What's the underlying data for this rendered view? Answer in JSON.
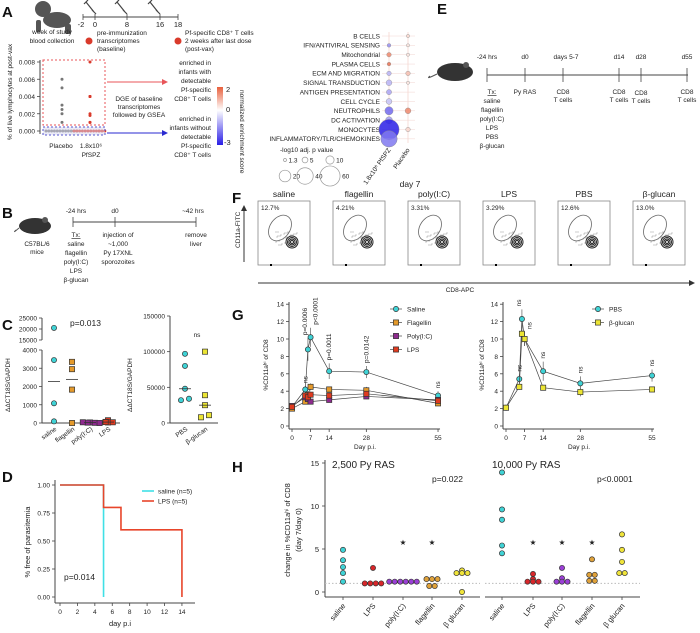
{
  "panels": {
    "A": "A",
    "B": "B",
    "C": "C",
    "D": "D",
    "E": "E",
    "F": "F",
    "G": "G",
    "H": "H"
  },
  "panelA": {
    "timeline_ticks": [
      "-2",
      "0",
      "8",
      "16",
      "18"
    ],
    "week_label": [
      "week of study",
      "blood collection"
    ],
    "legend_pre": [
      "pre-immunization",
      "transcriptomes",
      "(baseline)"
    ],
    "legend_post": [
      "Pf-specific CD8⁺ T cells",
      "2 weeks after last dose",
      "(post-vax)"
    ],
    "dge_text": [
      "DGE of baseline",
      "transcriptomes",
      "followed by GSEA"
    ],
    "enriched_with": [
      "enriched in",
      "infants with",
      "detectable",
      "Pf-specific",
      "CD8⁺ T cells"
    ],
    "enriched_without": [
      "enriched in",
      "infants without",
      "detectable",
      "Pf-specific",
      "CD8⁺ T cells"
    ],
    "colorbar": {
      "title": "normalized enrichment score",
      "ticks": [
        "2",
        "0",
        "-3"
      ],
      "low_color": "#2a1ee6",
      "mid_color": "#ffffff",
      "high_color": "#e8603c"
    },
    "pvalue_legend_title": "-log10 adj. p value"
  },
  "panelB": {
    "mouse_label": [
      "C57BL/6",
      "mice"
    ],
    "timeline_ticks": [
      "-24 hrs",
      "d0",
      "~42 hrs"
    ],
    "tx": [
      "Tx:",
      "saline",
      "flagellin",
      "poly(I:C)",
      "LPS",
      "β-glucan"
    ],
    "injection": [
      "injection of",
      "~1,000",
      "Py 17XNL",
      "sporozoites"
    ],
    "end": [
      "remove",
      "liver"
    ]
  },
  "panelE": {
    "timeline_ticks": [
      "-24 hrs",
      "d0",
      "days 5-7",
      "d14",
      "d28",
      "d55"
    ],
    "tx": [
      "Tx:",
      "saline",
      "flagellin",
      "poly(I:C)",
      "LPS",
      "PBS",
      "β-glucan"
    ],
    "events": [
      [
        "Py RAS"
      ],
      [
        "CD8",
        "T cells"
      ],
      [
        "CD8",
        "T cells"
      ],
      [
        "CD8",
        "T cells"
      ],
      [
        "CD8",
        "T cells"
      ]
    ]
  },
  "panelF": {
    "title": "day 7",
    "ylabel": "CD11a-FITC",
    "xlabel": "CD8-APC",
    "plots": [
      {
        "label": "saline",
        "pct": "12.7%"
      },
      {
        "label": "flagellin",
        "pct": "4.21%"
      },
      {
        "label": "poly(I:C)",
        "pct": "3.31%"
      },
      {
        "label": "LPS",
        "pct": "3.29%"
      },
      {
        "label": "PBS",
        "pct": "12.6%"
      },
      {
        "label": "β-glucan",
        "pct": "13.0%"
      }
    ]
  },
  "chart_data": [
    {
      "id": "A-scatter",
      "type": "scatter",
      "categories": [
        "Placebo",
        "1.8x10⁶ PfSPZ"
      ],
      "ylabel": "% of live lymphocytes at post-vax",
      "ylim": [
        0,
        0.008
      ],
      "yticks": [
        "0.008",
        "0.006",
        "0.004",
        "0.002",
        "0.000"
      ],
      "series": [
        {
          "category": "Placebo",
          "values": [
            0.006,
            0.005,
            0.003,
            0.0025,
            0.002,
            0.001,
            0,
            0,
            0,
            0,
            0,
            0,
            0,
            0,
            0,
            0,
            0,
            0
          ],
          "color": "#777777"
        },
        {
          "category": "1.8x10⁶ PfSPZ",
          "values": [
            0.008,
            0.004,
            0.004,
            0.004,
            0.004,
            0.002,
            0.0018,
            0.001,
            0.001,
            0,
            0,
            0,
            0,
            0,
            0,
            0,
            0,
            0,
            0,
            0,
            0,
            0
          ],
          "color": "#d93a2b"
        }
      ]
    },
    {
      "id": "A-dotplot",
      "type": "dotplot",
      "columns": [
        "1.8x10⁶ PfSPZ",
        "Placebo"
      ],
      "rows": [
        "B CELLS",
        "IFN/ANTIVIRAL SENSING",
        "Mitochondrial",
        "PLASMA CELLS",
        "ECM AND MIGRATION",
        "SIGNAL TRANSDUCTION",
        "ANTIGEN PRESENTATION",
        "CELL CYCLE",
        "NEUTROPHILS",
        "DC ACTIVATION",
        "MONOCYTES",
        "INFLAMMATORY/TLR/CHEMOKINES"
      ],
      "nes": [
        [
          null,
          0.5
        ],
        [
          -1.5,
          0.3
        ],
        [
          1.5,
          0.3
        ],
        [
          1.8,
          null
        ],
        [
          -1.0,
          0.8
        ],
        [
          -1.0,
          0.3
        ],
        [
          -1.2,
          null
        ],
        [
          -0.8,
          null
        ],
        [
          -2.0,
          1.5
        ],
        [
          -1.3,
          null
        ],
        [
          -3.0,
          0.5
        ],
        [
          -1.8,
          null
        ]
      ],
      "neg_log10_adj_p": [
        [
          null,
          1.5
        ],
        [
          2,
          1.5
        ],
        [
          3,
          1.5
        ],
        [
          2,
          null
        ],
        [
          3,
          3
        ],
        [
          5,
          1.5
        ],
        [
          4,
          null
        ],
        [
          5,
          null
        ],
        [
          10,
          5
        ],
        [
          7,
          null
        ],
        [
          60,
          3
        ],
        [
          40,
          null
        ]
      ],
      "size_legend": [
        "1.3",
        "5",
        "10",
        "20",
        "40",
        "60"
      ]
    },
    {
      "id": "C-left",
      "type": "scatter",
      "categories": [
        "saline",
        "flagellin",
        "poly(I:C)",
        "LPS"
      ],
      "ylabel": "ΔΔCT18S/GAPDH",
      "annotation": "p=0.013",
      "yticks_lower": [
        "0",
        "1000",
        "2000",
        "3000",
        "4000"
      ],
      "yticks_upper": [
        "15000",
        "20000",
        "25000"
      ],
      "values": [
        [
          20500,
          3450,
          1080,
          90
        ],
        [
          3350,
          2950,
          1830,
          0
        ],
        [
          30,
          20,
          10,
          40,
          0
        ],
        [
          150,
          60,
          30,
          50,
          40
        ]
      ],
      "medians": [
        2270,
        2390,
        20,
        50
      ],
      "colors": [
        "#3fd3d6",
        "#e59a2b",
        "#8e2a8e",
        "#e03a1f"
      ],
      "markers": [
        "circle",
        "square",
        "square",
        "square"
      ]
    },
    {
      "id": "C-right",
      "type": "scatter",
      "categories": [
        "PBS",
        "β-glucan"
      ],
      "ylabel": "ΔΔCT18S/GAPDH",
      "annotation": "ns",
      "ylim": [
        0,
        150000
      ],
      "yticks": [
        "0",
        "50000",
        "100000",
        "150000"
      ],
      "values": [
        [
          97000,
          80000,
          48000,
          32000,
          34000
        ],
        [
          100000,
          39000,
          25000,
          8000,
          11000
        ]
      ],
      "medians": [
        48000,
        25000
      ],
      "colors": [
        "#3fd3d6",
        "#ece534"
      ],
      "markers": [
        "circle",
        "square"
      ]
    },
    {
      "id": "D",
      "type": "line",
      "xlabel": "day p.i",
      "ylabel": "% free of parasitemia",
      "annotation": "p=0.014",
      "xlim": [
        0,
        14
      ],
      "xticks": [
        "0",
        "2",
        "4",
        "6",
        "8",
        "10",
        "12",
        "14"
      ],
      "ylim": [
        0,
        1
      ],
      "yticks": [
        "0.00",
        "0.25",
        "0.50",
        "0.75",
        "1.00"
      ],
      "legend": "top-right",
      "series": [
        {
          "name": "saline (n=5)",
          "color": "#3fe0e6",
          "steps": [
            [
              0,
              1
            ],
            [
              5,
              1
            ],
            [
              5,
              0
            ]
          ]
        },
        {
          "name": "LPS (n=5)",
          "color": "#e8452a",
          "steps": [
            [
              0,
              1
            ],
            [
              5,
              1
            ],
            [
              5,
              0.8
            ],
            [
              7,
              0.8
            ],
            [
              7,
              0.6
            ],
            [
              14,
              0.6
            ],
            [
              14,
              0
            ]
          ]
        }
      ]
    },
    {
      "id": "G-left",
      "type": "line",
      "xlabel": "Day p.i.",
      "ylabel": "%CD11aʰⁱ of CD8",
      "x": [
        0,
        5,
        6,
        7,
        14,
        28,
        55
      ],
      "xticks": [
        "0",
        "7",
        "14",
        "28",
        "55"
      ],
      "ylim": [
        0,
        14
      ],
      "yticks": [
        "0",
        "2",
        "4",
        "6",
        "8",
        "10",
        "12",
        "14"
      ],
      "legend": "top-right",
      "series": [
        {
          "name": "Saline",
          "color": "#3fd3d6",
          "marker": "circle",
          "values": [
            2.2,
            4.2,
            8.8,
            10.2,
            6.3,
            6.2,
            3.5
          ],
          "err": [
            0.2,
            0.4,
            1.3,
            1.1,
            0.9,
            0.7,
            0.5
          ]
        },
        {
          "name": "Flagellin",
          "color": "#e59a2b",
          "marker": "square",
          "values": [
            2.0,
            2.8,
            3.6,
            4.5,
            4.2,
            4.1,
            2.6
          ],
          "err": [
            0.2,
            0.3,
            0.4,
            0.4,
            0.3,
            0.4,
            0.3
          ]
        },
        {
          "name": "Poly(I:C)",
          "color": "#8e2a8e",
          "marker": "square",
          "values": [
            2.3,
            3.3,
            3.1,
            2.8,
            3.0,
            3.4,
            3.0
          ],
          "err": [
            0.2,
            0.3,
            0.3,
            0.3,
            0.3,
            0.3,
            0.3
          ]
        },
        {
          "name": "LPS",
          "color": "#e03a1f",
          "marker": "square",
          "values": [
            2.2,
            3.5,
            3.3,
            3.6,
            3.5,
            3.7,
            2.9
          ],
          "err": [
            0.2,
            0.3,
            0.3,
            0.3,
            0.3,
            0.3,
            0.3
          ]
        }
      ],
      "annotations": [
        {
          "x": 5,
          "text": "ns"
        },
        {
          "x": 6,
          "text": "p=0.0006"
        },
        {
          "x": 7,
          "text": "p<0.0001"
        },
        {
          "x": 14,
          "text": "p=0.0011"
        },
        {
          "x": 28,
          "text": "p=0.0142"
        },
        {
          "x": 55,
          "text": "ns"
        }
      ]
    },
    {
      "id": "G-right",
      "type": "line",
      "xlabel": "Day p.i.",
      "ylabel": "%CD11aʰⁱ of CD8",
      "x": [
        0,
        5,
        6,
        7,
        14,
        28,
        55
      ],
      "xticks": [
        "0",
        "7",
        "14",
        "28",
        "55"
      ],
      "ylim": [
        0,
        14
      ],
      "yticks": [
        "0",
        "2",
        "4",
        "6",
        "8",
        "10",
        "12",
        "14"
      ],
      "legend": "top-right",
      "series": [
        {
          "name": "PBS",
          "color": "#3fd3d6",
          "marker": "circle",
          "values": [
            2.1,
            5.4,
            12.3,
            10.0,
            6.3,
            4.9,
            5.8
          ],
          "err": [
            0.2,
            0.5,
            1.1,
            0.8,
            1.1,
            0.8,
            0.7
          ]
        },
        {
          "name": "β-glucan",
          "color": "#ece534",
          "marker": "square",
          "values": [
            2.1,
            4.5,
            10.6,
            10.0,
            4.4,
            3.9,
            4.2
          ],
          "err": [
            0.2,
            0.3,
            1.0,
            0.8,
            0.3,
            0.5,
            0.3
          ]
        }
      ],
      "annotations": [
        {
          "x": 5,
          "text": "ns"
        },
        {
          "x": 6,
          "text": "ns"
        },
        {
          "x": 7,
          "text": "ns"
        },
        {
          "x": 14,
          "text": "ns"
        },
        {
          "x": 28,
          "text": "ns"
        },
        {
          "x": 55,
          "text": "ns"
        }
      ]
    },
    {
      "id": "H",
      "type": "scatter",
      "ylabel": "change in %CD11aʰⁱ of CD8 (day 7/day 0)",
      "ylim": [
        0,
        15
      ],
      "yticks": [
        "0",
        "5",
        "10",
        "15"
      ],
      "reference_line": 1,
      "categories": [
        "saline",
        "LPS",
        "poly(I:C)",
        "flagellin",
        "β glucan"
      ],
      "colors": [
        "#3fd3d6",
        "#d8262a",
        "#9b3fd6",
        "#e0a23a",
        "#f0e43a"
      ],
      "groups": [
        {
          "title": "2,500 Py RAS",
          "pvalue": "p=0.022",
          "values": [
            [
              4.9,
              3.7,
              2.9,
              2.2,
              1.2
            ],
            [
              2.8,
              1,
              1,
              1,
              1
            ],
            [
              1.2,
              1.2,
              1.2,
              1.2,
              1.2,
              1.2
            ],
            [
              1.5,
              1.5,
              1.5,
              0.7,
              0.7
            ],
            [
              2.5,
              2.2,
              2.2,
              2.2,
              0
            ]
          ],
          "stars": [
            false,
            false,
            true,
            true,
            false
          ]
        },
        {
          "title": "10,000 Py RAS",
          "pvalue": "p<0.0001",
          "values": [
            [
              13.9,
              9.6,
              8.4,
              5.4,
              4.5
            ],
            [
              2.1,
              1.5,
              1.2,
              1.2,
              1.2
            ],
            [
              2.8,
              1.6,
              1.2,
              1.2,
              1.2
            ],
            [
              3.8,
              2,
              2,
              1.3,
              1.3
            ],
            [
              6.7,
              4.9,
              3.5,
              2.2,
              2.2
            ]
          ],
          "stars": [
            false,
            true,
            true,
            true,
            false
          ]
        }
      ],
      "star_symbol": "★"
    }
  ]
}
